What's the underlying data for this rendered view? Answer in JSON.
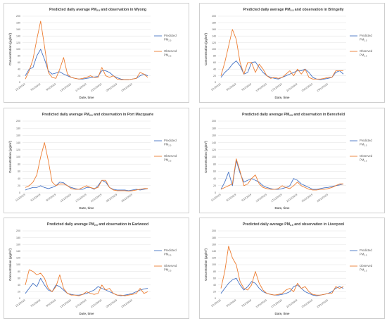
{
  "colors": {
    "predicted": "#4472c4",
    "observed": "#ed7d31"
  },
  "chart_data": [
    {
      "type": "line",
      "title": "Predicted daily average PM2.5 and observation in Wyong",
      "title_parts": [
        "Predicted daily average PM",
        "2.5",
        " and observation in Wyong"
      ],
      "xlabel": "Date, time",
      "ylabel": "Concentration (μg/m³)",
      "ylim": [
        0,
        200
      ],
      "yticks": [
        "0",
        "20",
        "40",
        "60",
        "80",
        "100",
        "120",
        "140",
        "160",
        "180",
        "200"
      ],
      "xticks": [
        "1/12/2019",
        "5/12/2019",
        "9/12/2019",
        "13/12/2019",
        "17/12/2019",
        "21/12/2019",
        "25/12/2019",
        "29/12/2019"
      ],
      "legend_position": "right",
      "series": [
        {
          "name": "Predicted PM2.5",
          "name_parts": [
            "Predicted",
            "PM",
            "2.5"
          ],
          "values": [
            20,
            40,
            45,
            80,
            100,
            70,
            35,
            25,
            28,
            32,
            25,
            20,
            15,
            12,
            10,
            10,
            12,
            14,
            16,
            18,
            35,
            35,
            30,
            20,
            14,
            10,
            8,
            8,
            10,
            12,
            20,
            25,
            20
          ]
        },
        {
          "name": "Observed PM2.5",
          "name_parts": [
            "Observed",
            "PM",
            "2.5"
          ],
          "values": [
            10,
            35,
            70,
            130,
            185,
            110,
            30,
            15,
            12,
            40,
            75,
            25,
            15,
            12,
            10,
            12,
            15,
            20,
            15,
            15,
            45,
            20,
            15,
            20,
            10,
            8,
            8,
            8,
            10,
            12,
            30,
            25,
            15
          ]
        }
      ]
    },
    {
      "type": "line",
      "title": "Predicted daily average PM2.5 and observation in Bringelly",
      "title_parts": [
        "Predicted daily average PM",
        "2.5",
        " and observation in Bringelly"
      ],
      "xlabel": "Date, time",
      "ylabel": "Concentration (μg/m³)",
      "ylim": [
        0,
        200
      ],
      "yticks": [
        "0",
        "20",
        "40",
        "60",
        "80",
        "100",
        "120",
        "140",
        "160",
        "180",
        "200"
      ],
      "xticks": [
        "1/12/2019",
        "5/12/2019",
        "9/12/2019",
        "13/12/2019",
        "17/12/2019",
        "21/12/2019",
        "25/12/2019",
        "29/12/2019"
      ],
      "legend_position": "right",
      "series": [
        {
          "name": "Predicted PM2.5",
          "name_parts": [
            "Predicted",
            "PM",
            "2.5"
          ],
          "values": [
            15,
            30,
            40,
            55,
            65,
            50,
            25,
            30,
            60,
            62,
            45,
            30,
            20,
            15,
            12,
            10,
            15,
            20,
            25,
            30,
            35,
            35,
            40,
            30,
            15,
            10,
            8,
            10,
            12,
            15,
            30,
            35,
            25
          ]
        },
        {
          "name": "Observed PM2.5",
          "name_parts": [
            "Observed",
            "PM",
            "2.5"
          ],
          "values": [
            20,
            60,
            110,
            160,
            130,
            60,
            25,
            60,
            60,
            30,
            55,
            40,
            20,
            12,
            15,
            12,
            15,
            25,
            35,
            20,
            40,
            25,
            40,
            15,
            10,
            10,
            10,
            12,
            15,
            15,
            35,
            35,
            35
          ]
        }
      ]
    },
    {
      "type": "line",
      "title": "Predicted daily average PM2.5 and observation in Port Macquarie",
      "title_parts": [
        "Predicted daily average PM",
        "2.5",
        " and observation in Port Macquarie"
      ],
      "xlabel": "Date, time",
      "ylabel": "Concentration (μg/m³)",
      "ylim": [
        0,
        200
      ],
      "yticks": [
        "0",
        "20",
        "40",
        "60",
        "80",
        "100",
        "120",
        "140",
        "160",
        "180",
        "200"
      ],
      "xticks": [
        "1/12/2019",
        "5/12/2019",
        "9/12/2019",
        "13/12/2019",
        "17/12/2019",
        "21/12/2019",
        "25/12/2019",
        "29/12/2019"
      ],
      "legend_position": "right",
      "series": [
        {
          "name": "Predicted PM2.5",
          "name_parts": [
            "Predicted",
            "PM",
            "2.5"
          ],
          "values": [
            8,
            12,
            15,
            15,
            20,
            15,
            12,
            15,
            20,
            30,
            28,
            20,
            15,
            12,
            10,
            10,
            15,
            15,
            10,
            20,
            35,
            30,
            15,
            10,
            8,
            8,
            8,
            6,
            8,
            10,
            8,
            10,
            12
          ]
        },
        {
          "name": "Observed PM2.5",
          "name_parts": [
            "Observed",
            "PM",
            "2.5"
          ],
          "values": [
            15,
            20,
            30,
            50,
            100,
            140,
            90,
            30,
            20,
            25,
            25,
            20,
            12,
            10,
            10,
            15,
            20,
            15,
            12,
            15,
            35,
            35,
            15,
            8,
            6,
            6,
            6,
            5,
            6,
            8,
            10,
            12,
            12
          ]
        }
      ]
    },
    {
      "type": "line",
      "title": "Predicted daily average PM2.5 and observation in Beresfield",
      "title_parts": [
        "Predicted daily average PM",
        "2.5",
        " and observation in Beresfield"
      ],
      "xlabel": "Date, time",
      "ylabel": "Concentration (μg/m³)",
      "ylim": [
        0,
        200
      ],
      "yticks": [
        "0",
        "20",
        "40",
        "60",
        "80",
        "100",
        "120",
        "140",
        "160",
        "180",
        "200"
      ],
      "xticks": [
        "1/12/2019",
        "5/12/2019",
        "9/12/2019",
        "13/12/2019",
        "17/12/2019",
        "21/12/2019",
        "25/12/2019",
        "29/12/2019"
      ],
      "legend_position": "right",
      "series": [
        {
          "name": "Predicted PM2.5",
          "name_parts": [
            "Predicted",
            "PM",
            "2.5"
          ],
          "values": [
            10,
            30,
            58,
            20,
            90,
            55,
            30,
            35,
            40,
            35,
            30,
            20,
            15,
            12,
            10,
            10,
            12,
            15,
            20,
            40,
            35,
            25,
            20,
            15,
            10,
            10,
            12,
            14,
            15,
            18,
            20,
            22,
            25
          ]
        },
        {
          "name": "Observed PM2.5",
          "name_parts": [
            "Observed",
            "PM",
            "2.5"
          ],
          "values": [
            10,
            15,
            20,
            25,
            95,
            60,
            20,
            25,
            40,
            50,
            25,
            15,
            12,
            10,
            10,
            12,
            20,
            15,
            12,
            20,
            30,
            20,
            15,
            10,
            8,
            8,
            10,
            10,
            12,
            15,
            20,
            25,
            25
          ]
        }
      ]
    },
    {
      "type": "line",
      "title": "Predicted daily average PM2.5 and observation in Earlwood",
      "title_parts": [
        "Predicted daily average PM",
        "2.5",
        " and observation in Earlwood"
      ],
      "xlabel": "Date, time",
      "ylabel": "Concentration (μg/m³)",
      "ylim": [
        0,
        200
      ],
      "yticks": [
        "0",
        "20",
        "40",
        "60",
        "80",
        "100",
        "120",
        "140",
        "160",
        "180",
        "200"
      ],
      "xticks": [
        "1/12/2019",
        "5/12/2019",
        "9/12/2019",
        "13/12/2019",
        "17/12/2019",
        "21/12/2019",
        "25/12/2019",
        "29/12/2019"
      ],
      "legend_position": "right",
      "series": [
        {
          "name": "Predicted PM2.5",
          "name_parts": [
            "Predicted",
            "PM",
            "2.5"
          ],
          "values": [
            15,
            30,
            45,
            35,
            60,
            40,
            25,
            20,
            40,
            35,
            25,
            15,
            12,
            10,
            10,
            12,
            15,
            20,
            25,
            35,
            30,
            25,
            20,
            15,
            10,
            8,
            10,
            12,
            15,
            20,
            25,
            28,
            30
          ]
        },
        {
          "name": "Observed PM2.5",
          "name_parts": [
            "Observed",
            "PM",
            "2.5"
          ],
          "values": [
            40,
            85,
            80,
            70,
            75,
            60,
            30,
            20,
            35,
            70,
            30,
            15,
            10,
            10,
            8,
            12,
            20,
            15,
            12,
            15,
            40,
            25,
            30,
            15,
            10,
            10,
            8,
            10,
            12,
            15,
            30,
            15,
            20
          ]
        }
      ]
    },
    {
      "type": "line",
      "title": "Predicted daily average PM2.5 and observation in Liverpool",
      "title_parts": [
        "Predicted daily average PM",
        "2.5",
        " and observation in Liverpool"
      ],
      "xlabel": "Date, time",
      "ylabel": "Concentration (μg/m³)",
      "ylim": [
        0,
        200
      ],
      "yticks": [
        "0",
        "20",
        "40",
        "60",
        "80",
        "100",
        "120",
        "140",
        "160",
        "180",
        "200"
      ],
      "xticks": [
        "1/12/2019",
        "5/12/2019",
        "9/12/2019",
        "13/12/2019",
        "17/12/2019",
        "21/12/2019",
        "25/12/2019",
        "29/12/2019"
      ],
      "legend_position": "right",
      "series": [
        {
          "name": "Predicted PM2.5",
          "name_parts": [
            "Predicted",
            "PM",
            "2.5"
          ],
          "values": [
            15,
            30,
            45,
            55,
            60,
            40,
            25,
            35,
            50,
            45,
            30,
            20,
            15,
            12,
            10,
            10,
            12,
            15,
            20,
            35,
            40,
            30,
            20,
            15,
            10,
            8,
            10,
            12,
            15,
            20,
            30,
            35,
            30
          ]
        },
        {
          "name": "Observed PM2.5",
          "name_parts": [
            "Observed",
            "PM",
            "2.5"
          ],
          "values": [
            30,
            80,
            155,
            120,
            100,
            50,
            30,
            25,
            40,
            80,
            45,
            25,
            15,
            12,
            10,
            12,
            15,
            25,
            30,
            20,
            45,
            30,
            35,
            20,
            12,
            10,
            10,
            12,
            15,
            15,
            35,
            30,
            35
          ]
        }
      ]
    }
  ]
}
